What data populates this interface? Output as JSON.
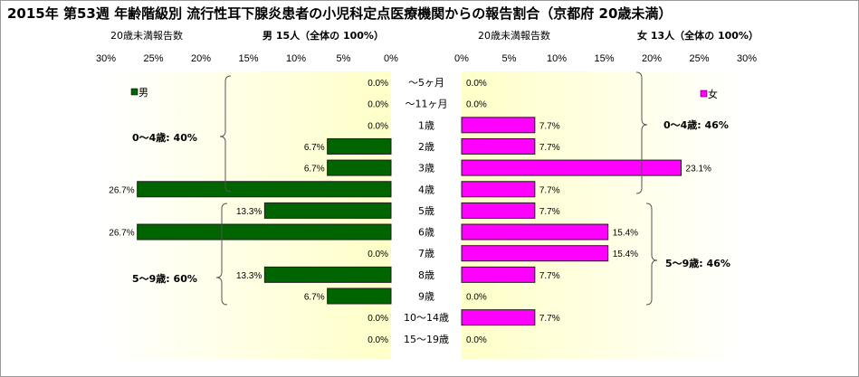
{
  "title": "2015年 第53週 年齢階級別 流行性耳下腺炎患者の小児科定点医療機関からの報告割合（京都府 20歳未満）",
  "male_header": {
    "caption": "20歳未満報告数",
    "label": "男 15人（全体の 100%）"
  },
  "female_header": {
    "caption": "20歳未満報告数",
    "label": "女 13人（全体の 100%）"
  },
  "chart_data": {
    "type": "bar",
    "orientation": "horizontal-butterfly",
    "categories": [
      "～5ヶ月",
      "～11ヶ月",
      "1歳",
      "2歳",
      "3歳",
      "4歳",
      "5歳",
      "6歳",
      "7歳",
      "8歳",
      "9歳",
      "10～14歳",
      "15～19歳"
    ],
    "axis": {
      "ticks": [
        0,
        5,
        10,
        15,
        20,
        25,
        30
      ],
      "tick_labels": [
        "0%",
        "5%",
        "10%",
        "15%",
        "20%",
        "25%",
        "30%"
      ],
      "range": [
        0,
        30
      ]
    },
    "series": [
      {
        "name": "男",
        "side": "left",
        "color": "#006400",
        "values": [
          0.0,
          0.0,
          0.0,
          6.7,
          6.7,
          26.7,
          13.3,
          26.7,
          0.0,
          13.3,
          6.7,
          0.0,
          0.0
        ],
        "labels": [
          "0.0%",
          "0.0%",
          "0.0%",
          "6.7%",
          "6.7%",
          "26.7%",
          "13.3%",
          "26.7%",
          "0.0%",
          "13.3%",
          "6.7%",
          "0.0%",
          "0.0%"
        ]
      },
      {
        "name": "女",
        "side": "right",
        "color": "#ff00ff",
        "values": [
          0.0,
          0.0,
          7.7,
          7.7,
          23.1,
          7.7,
          7.7,
          15.4,
          15.4,
          7.7,
          0.0,
          7.7,
          0.0
        ],
        "labels": [
          "0.0%",
          "0.0%",
          "7.7%",
          "7.7%",
          "23.1%",
          "7.7%",
          "7.7%",
          "15.4%",
          "15.4%",
          "7.7%",
          "0.0%",
          "7.7%",
          "0.0%"
        ]
      }
    ],
    "group_annotations": {
      "male": [
        {
          "label": "0～4歳: 40%",
          "from": 0,
          "to": 5
        },
        {
          "label": "5～9歳: 60%",
          "from": 6,
          "to": 10
        }
      ],
      "female": [
        {
          "label": "0～4歳: 46%",
          "from": 0,
          "to": 5
        },
        {
          "label": "5～9歳: 46%",
          "from": 6,
          "to": 10
        }
      ]
    },
    "plot_background": "#ffffcc"
  }
}
